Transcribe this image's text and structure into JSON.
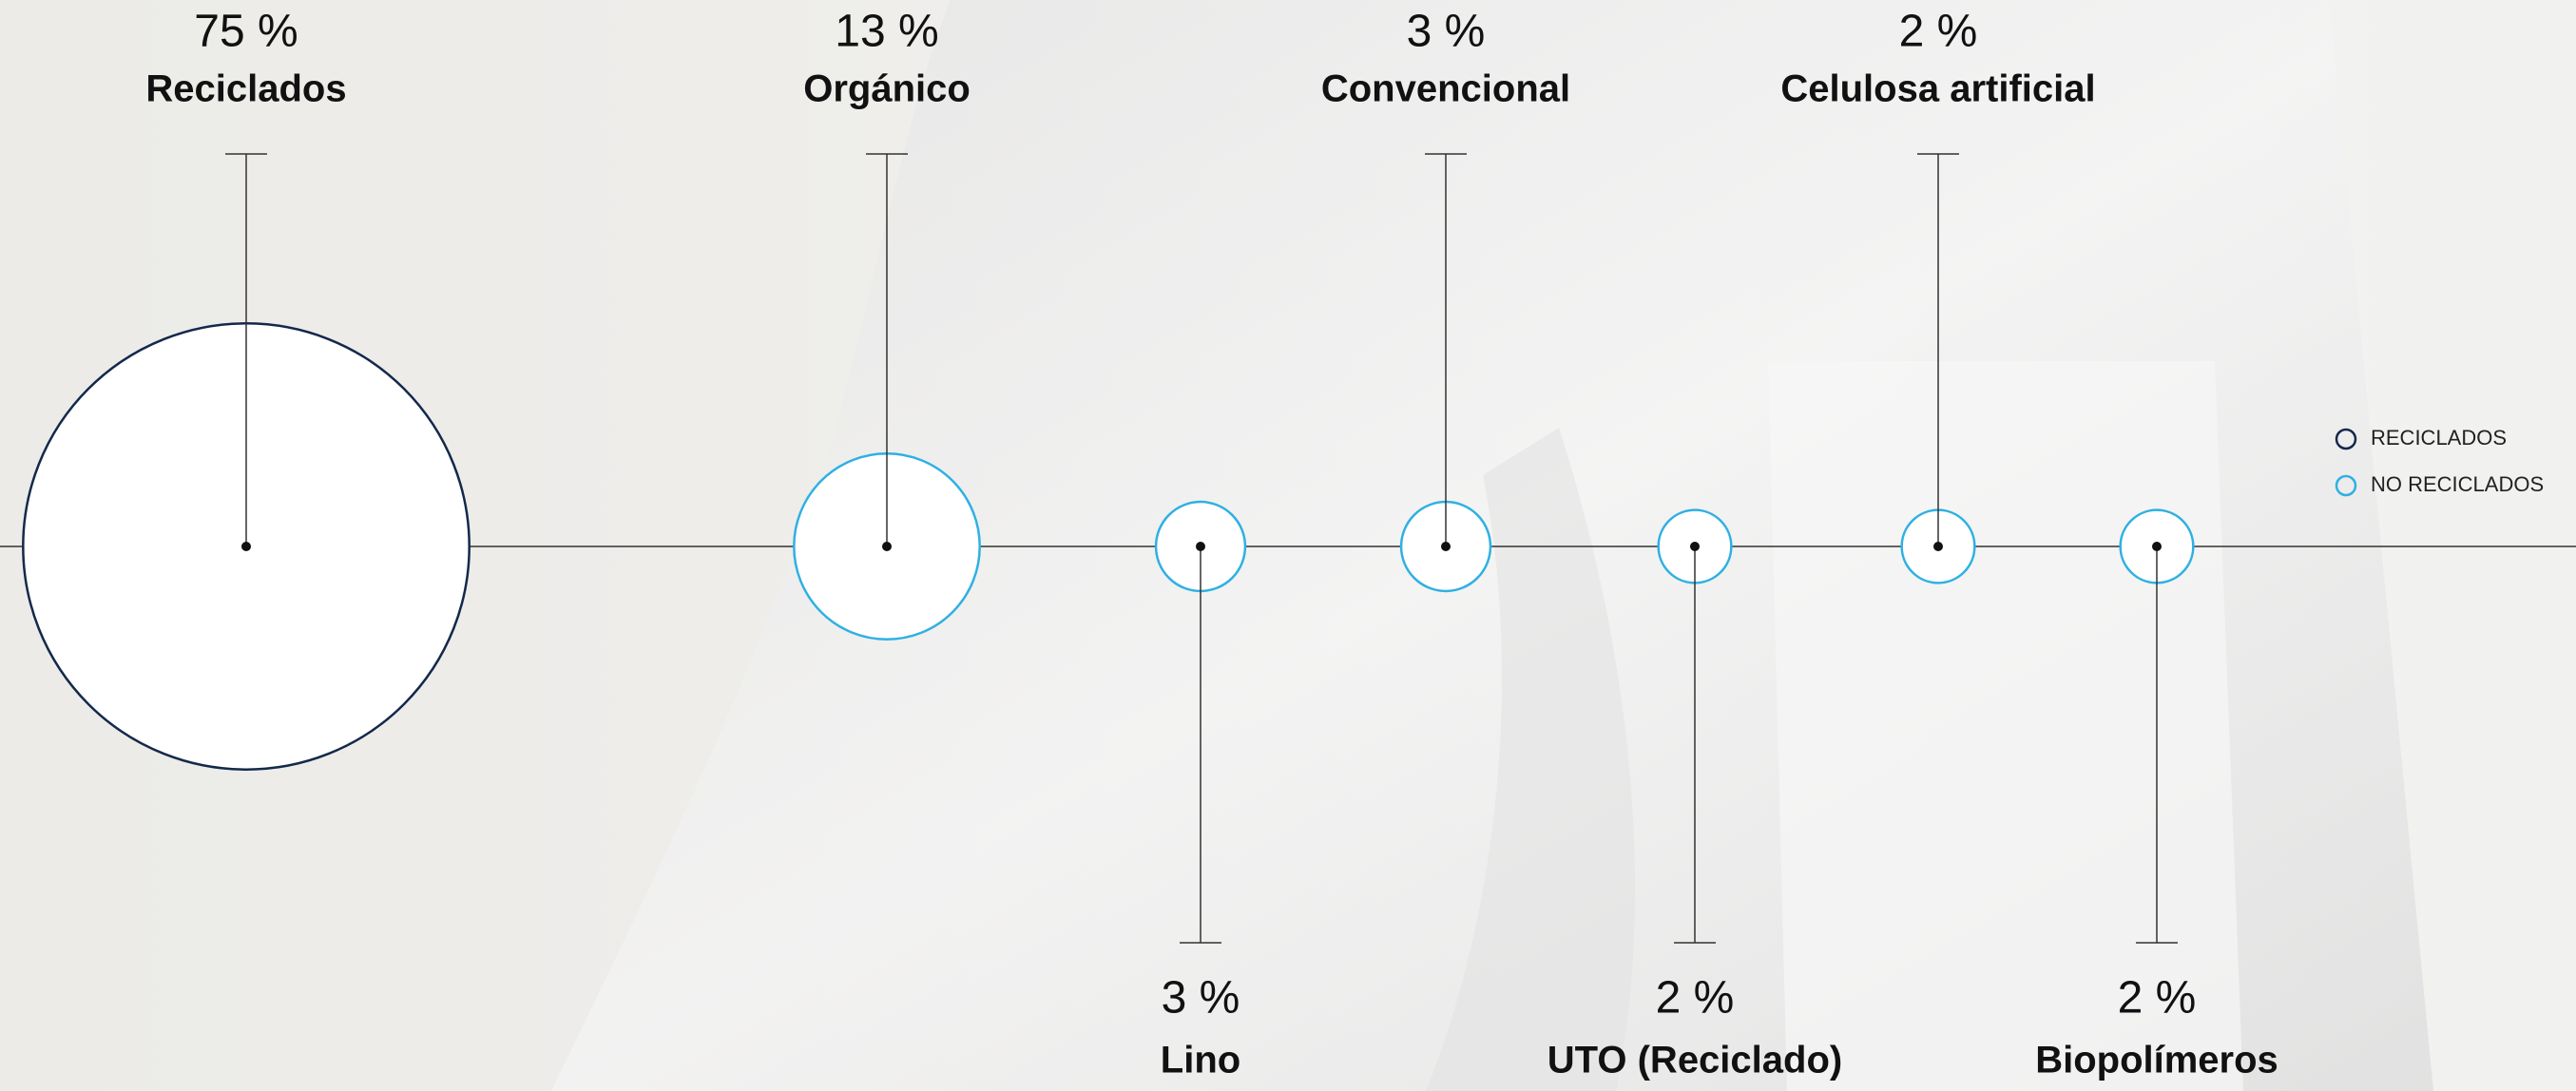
{
  "chart_data": {
    "type": "bubble",
    "categories": [
      "Reciclados",
      "Orgánico",
      "Lino",
      "Convencional",
      "UTO (Reciclado)",
      "Celulosa artificial",
      "Biopolímeros"
    ],
    "series": [
      {
        "name": "RECICLADOS",
        "color": "#13294b",
        "values": [
          75,
          null,
          null,
          null,
          null,
          null,
          null
        ],
        "value_labels": [
          "75 %",
          null,
          null,
          null,
          null,
          null,
          null
        ]
      },
      {
        "name": "NO RECICLADOS",
        "color": "#2fb0e3",
        "values": [
          null,
          13,
          3,
          3,
          2,
          2,
          2
        ],
        "value_labels": [
          null,
          "13 %",
          "3 %",
          "3 %",
          "2 %",
          "2 %",
          "2 %"
        ]
      }
    ],
    "legend": "right"
  }
}
